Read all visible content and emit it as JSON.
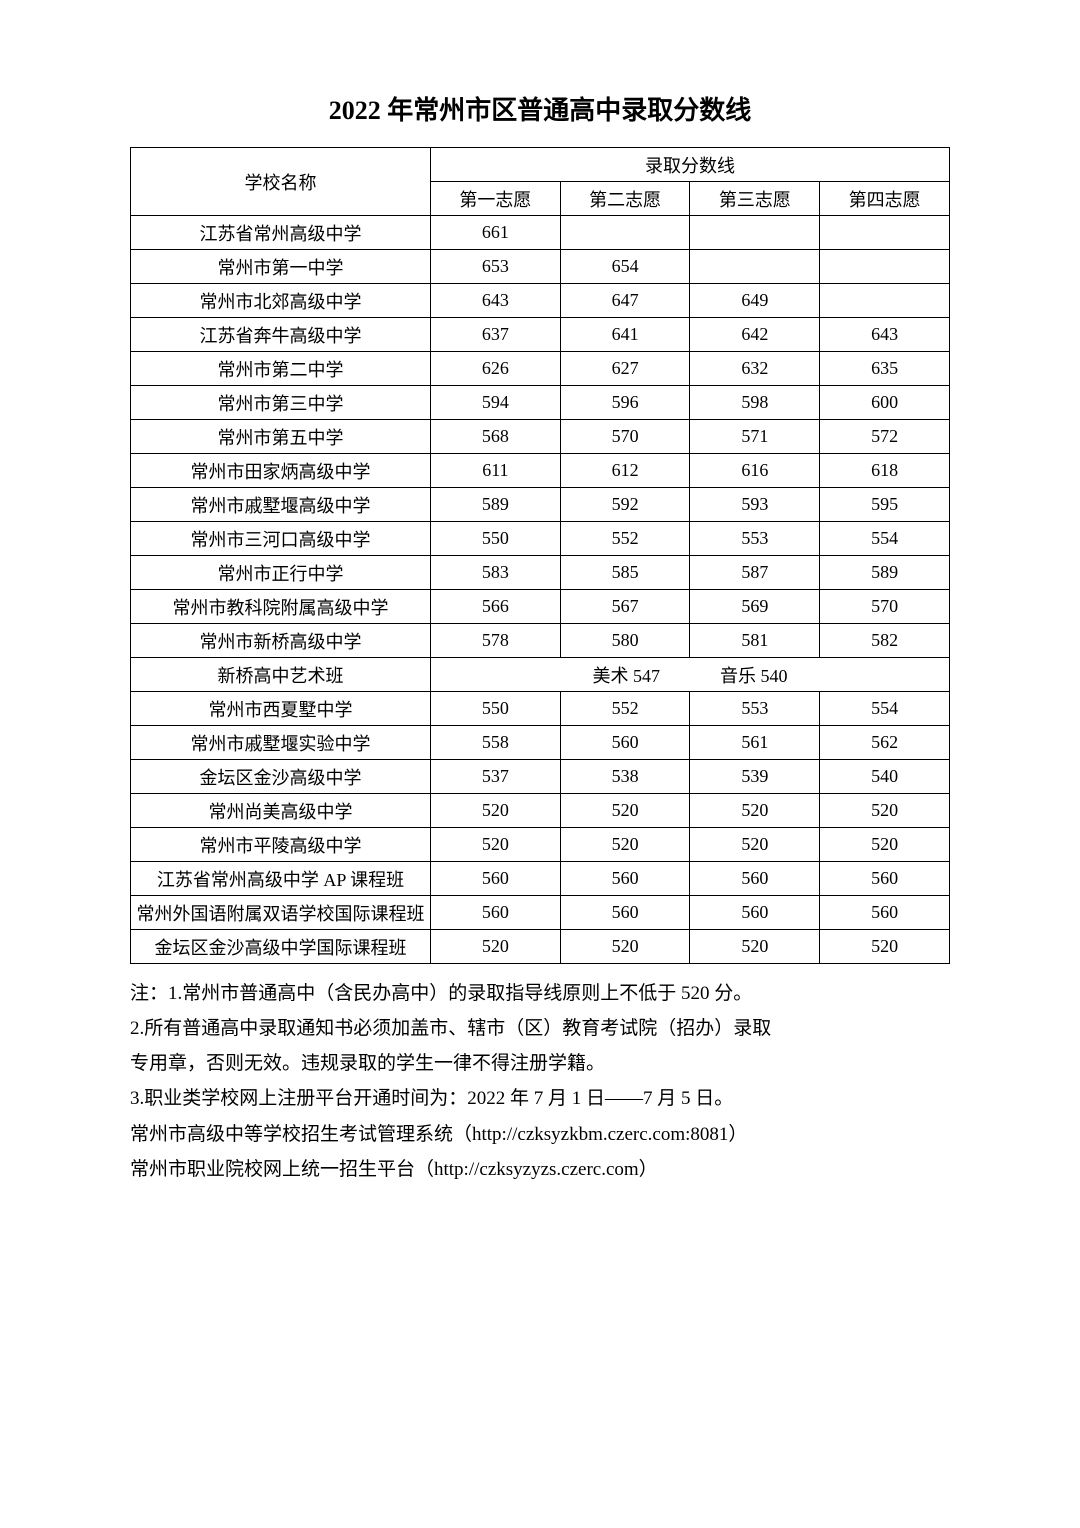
{
  "title": "2022 年常州市区普通高中录取分数线",
  "header": {
    "school_name": "学校名称",
    "score_group": "录取分数线",
    "c1": "第一志愿",
    "c2": "第二志愿",
    "c3": "第三志愿",
    "c4": "第四志愿"
  },
  "rows": [
    {
      "name": "江苏省常州高级中学",
      "s1": "661",
      "s2": "",
      "s3": "",
      "s4": ""
    },
    {
      "name": "常州市第一中学",
      "s1": "653",
      "s2": "654",
      "s3": "",
      "s4": ""
    },
    {
      "name": "常州市北郊高级中学",
      "s1": "643",
      "s2": "647",
      "s3": "649",
      "s4": ""
    },
    {
      "name": "江苏省奔牛高级中学",
      "s1": "637",
      "s2": "641",
      "s3": "642",
      "s4": "643"
    },
    {
      "name": "常州市第二中学",
      "s1": "626",
      "s2": "627",
      "s3": "632",
      "s4": "635"
    },
    {
      "name": "常州市第三中学",
      "s1": "594",
      "s2": "596",
      "s3": "598",
      "s4": "600"
    },
    {
      "name": "常州市第五中学",
      "s1": "568",
      "s2": "570",
      "s3": "571",
      "s4": "572"
    },
    {
      "name": "常州市田家炳高级中学",
      "s1": "611",
      "s2": "612",
      "s3": "616",
      "s4": "618"
    },
    {
      "name": "常州市戚墅堰高级中学",
      "s1": "589",
      "s2": "592",
      "s3": "593",
      "s4": "595"
    },
    {
      "name": "常州市三河口高级中学",
      "s1": "550",
      "s2": "552",
      "s3": "553",
      "s4": "554"
    },
    {
      "name": "常州市正行中学",
      "s1": "583",
      "s2": "585",
      "s3": "587",
      "s4": "589"
    },
    {
      "name": "常州市教科院附属高级中学",
      "s1": "566",
      "s2": "567",
      "s3": "569",
      "s4": "570"
    },
    {
      "name": "常州市新桥高级中学",
      "s1": "578",
      "s2": "580",
      "s3": "581",
      "s4": "582"
    }
  ],
  "art_row": {
    "name": "新桥高中艺术班",
    "art_label": "美术 547",
    "music_label": "音乐 540"
  },
  "rows2": [
    {
      "name": "常州市西夏墅中学",
      "s1": "550",
      "s2": "552",
      "s3": "553",
      "s4": "554"
    },
    {
      "name": "常州市戚墅堰实验中学",
      "s1": "558",
      "s2": "560",
      "s3": "561",
      "s4": "562"
    },
    {
      "name": "金坛区金沙高级中学",
      "s1": "537",
      "s2": "538",
      "s3": "539",
      "s4": "540"
    },
    {
      "name": "常州尚美高级中学",
      "s1": "520",
      "s2": "520",
      "s3": "520",
      "s4": "520"
    },
    {
      "name": "常州市平陵高级中学",
      "s1": "520",
      "s2": "520",
      "s3": "520",
      "s4": "520"
    },
    {
      "name": "江苏省常州高级中学 AP 课程班",
      "s1": "560",
      "s2": "560",
      "s3": "560",
      "s4": "560"
    },
    {
      "name": "常州外国语附属双语学校国际课程班",
      "s1": "560",
      "s2": "560",
      "s3": "560",
      "s4": "560"
    },
    {
      "name": "金坛区金沙高级中学国际课程班",
      "s1": "520",
      "s2": "520",
      "s3": "520",
      "s4": "520"
    }
  ],
  "notes": {
    "n1": "注：1.常州市普通高中（含民办高中）的录取指导线原则上不低于 520 分。",
    "n2a": "2.所有普通高中录取通知书必须加盖市、辖市（区）教育考试院（招办）录取",
    "n2b": "专用章，否则无效。违规录取的学生一律不得注册学籍。",
    "n3": "3.职业类学校网上注册平台开通时间为：2022 年 7 月 1 日——7 月 5 日。",
    "n4": "常州市高级中等学校招生考试管理系统（http://czksyzkbm.czerc.com:8081）",
    "n5": "常州市职业院校网上统一招生平台（http://czksyzyzs.czerc.com）"
  }
}
